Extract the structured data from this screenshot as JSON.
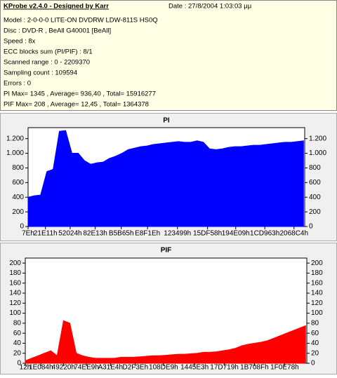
{
  "info": {
    "title": "KProbe v2.4.0 - Designed by Karr",
    "date": "Date : 27/8/2004 1:03:03 μμ",
    "lines": [
      "Model : 2-0-0-0 LITE-ON DVDRW LDW-811S   HS0Q",
      "Disc : DVD-R , BeAll G40001 [BeAll]",
      "Speed : 8x",
      "ECC blocks sum (PI/PIF) : 8/1",
      "Scanned range : 0 - 2209370",
      "Sampling count : 109594",
      "Errors : 0",
      "PI Max= 1345 , Average= 936,40 , Total= 15916277",
      "PIF Max= 208 , Average= 12,45 , Total= 1364378"
    ]
  },
  "chart_data": [
    {
      "type": "area",
      "title": "PI",
      "x": [
        0,
        50000,
        100000,
        150000,
        200000,
        250000,
        300000,
        350000,
        400000,
        450000,
        500000,
        550000,
        600000,
        650000,
        700000,
        750000,
        800000,
        850000,
        900000,
        950000,
        1000000,
        1050000,
        1100000,
        1150000,
        1200000,
        1250000,
        1300000,
        1350000,
        1400000,
        1450000,
        1500000,
        1550000,
        1600000,
        1650000,
        1700000,
        1750000,
        1800000,
        1850000,
        1900000,
        1950000,
        2000000,
        2050000,
        2100000,
        2150000,
        2200000
      ],
      "series": [
        {
          "name": "PI",
          "color": "#0000ff",
          "values": [
            400,
            420,
            430,
            750,
            780,
            1300,
            1310,
            1000,
            1000,
            900,
            850,
            870,
            880,
            930,
            960,
            1000,
            1050,
            1070,
            1090,
            1100,
            1120,
            1130,
            1140,
            1150,
            1160,
            1150,
            1150,
            1170,
            1150,
            1060,
            1050,
            1060,
            1080,
            1090,
            1090,
            1100,
            1110,
            1110,
            1120,
            1130,
            1140,
            1150,
            1150,
            1160,
            1170
          ]
        }
      ],
      "xlim": [
        0,
        2209370
      ],
      "xticks": [
        {
          "value": 126,
          "label": "7Eh"
        },
        {
          "value": 138769,
          "label": "21E11h"
        },
        {
          "value": 335908,
          "label": "52024h"
        },
        {
          "value": 536083,
          "label": "82E13h"
        },
        {
          "value": 744293,
          "label": "B5B65h"
        },
        {
          "value": 954142,
          "label": "E8F1Eh"
        },
        {
          "value": 1193113,
          "label": "123499h"
        },
        {
          "value": 1433432,
          "label": "15DF58h"
        },
        {
          "value": 1658377,
          "label": "194E09h"
        },
        {
          "value": 1890659,
          "label": "1CD963h"
        },
        {
          "value": 2123972,
          "label": "2068C4h"
        }
      ],
      "ylim": [
        0,
        1350
      ],
      "yticks": [
        0,
        200,
        400,
        600,
        800,
        {
          "value": 1000,
          "label": "1.000"
        },
        {
          "value": 1200,
          "label": "1.200"
        }
      ]
    },
    {
      "type": "area",
      "title": "PIF",
      "x": [
        0,
        50000,
        100000,
        150000,
        200000,
        250000,
        300000,
        350000,
        400000,
        450000,
        500000,
        550000,
        600000,
        650000,
        700000,
        750000,
        800000,
        850000,
        900000,
        950000,
        1000000,
        1050000,
        1100000,
        1150000,
        1200000,
        1250000,
        1300000,
        1350000,
        1400000,
        1450000,
        1500000,
        1550000,
        1600000,
        1650000,
        1700000,
        1750000,
        1800000,
        1850000,
        1900000,
        1950000,
        2000000,
        2050000,
        2100000,
        2150000,
        2200000
      ],
      "series": [
        {
          "name": "PIF",
          "color": "#ff0000",
          "values": [
            5,
            10,
            15,
            20,
            25,
            15,
            85,
            80,
            20,
            15,
            12,
            10,
            10,
            10,
            10,
            12,
            12,
            12,
            13,
            14,
            15,
            15,
            16,
            17,
            18,
            18,
            19,
            20,
            22,
            22,
            23,
            25,
            27,
            30,
            35,
            38,
            40,
            42,
            45,
            50,
            55,
            60,
            65,
            70,
            75
          ]
        }
      ],
      "xlim": [
        0,
        2209370
      ],
      "xticks": [
        {
          "value": 18,
          "label": "12h"
        },
        {
          "value": 122980,
          "label": "1E084h"
        },
        {
          "value": 299552,
          "label": "49220h"
        },
        {
          "value": 479977,
          "label": "74EE9h"
        },
        {
          "value": 668132,
          "label": "A31E4h"
        },
        {
          "value": 864062,
          "label": "D2F3Eh"
        },
        {
          "value": 1084905,
          "label": "108DE9h"
        },
        {
          "value": 1328611,
          "label": "1445E3h"
        },
        {
          "value": 1562393,
          "label": "17D719h"
        },
        {
          "value": 1798287,
          "label": "1B708Fh"
        },
        {
          "value": 2035320,
          "label": "1F0E78h"
        }
      ],
      "ylim": [
        0,
        210
      ],
      "yticks": [
        0,
        20,
        40,
        60,
        80,
        100,
        120,
        140,
        160,
        180,
        200
      ]
    }
  ]
}
